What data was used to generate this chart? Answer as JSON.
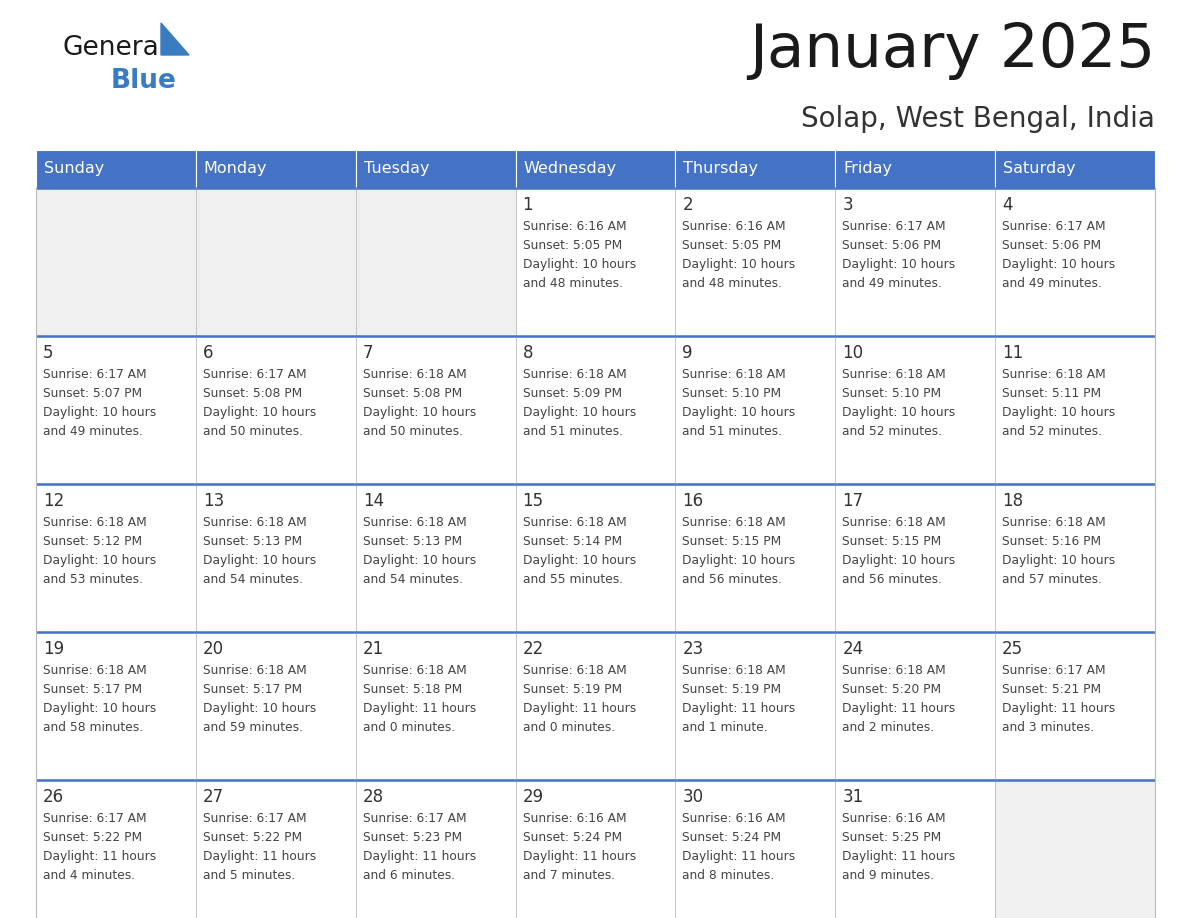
{
  "title": "January 2025",
  "subtitle": "Solap, West Bengal, India",
  "days_of_week": [
    "Sunday",
    "Monday",
    "Tuesday",
    "Wednesday",
    "Thursday",
    "Friday",
    "Saturday"
  ],
  "header_bg": "#4472C4",
  "header_text": "#FFFFFF",
  "cell_bg_light": "#FFFFFF",
  "cell_bg_gray": "#F0F0F0",
  "cell_border": "#4472C4",
  "cell_line_color": "#BBBBBB",
  "text_color": "#444444",
  "day_num_color": "#333333",
  "title_color": "#1a1a1a",
  "subtitle_color": "#333333",
  "logo_black": "#1a1a1a",
  "logo_blue": "#3a7cc1",
  "logo_tri": "#3a7cc1",
  "calendar_data": [
    [
      {
        "day": null,
        "sunrise": null,
        "sunset": null,
        "daylight_line1": null,
        "daylight_line2": null
      },
      {
        "day": null,
        "sunrise": null,
        "sunset": null,
        "daylight_line1": null,
        "daylight_line2": null
      },
      {
        "day": null,
        "sunrise": null,
        "sunset": null,
        "daylight_line1": null,
        "daylight_line2": null
      },
      {
        "day": 1,
        "sunrise": "6:16 AM",
        "sunset": "5:05 PM",
        "daylight_line1": "Daylight: 10 hours",
        "daylight_line2": "and 48 minutes."
      },
      {
        "day": 2,
        "sunrise": "6:16 AM",
        "sunset": "5:05 PM",
        "daylight_line1": "Daylight: 10 hours",
        "daylight_line2": "and 48 minutes."
      },
      {
        "day": 3,
        "sunrise": "6:17 AM",
        "sunset": "5:06 PM",
        "daylight_line1": "Daylight: 10 hours",
        "daylight_line2": "and 49 minutes."
      },
      {
        "day": 4,
        "sunrise": "6:17 AM",
        "sunset": "5:06 PM",
        "daylight_line1": "Daylight: 10 hours",
        "daylight_line2": "and 49 minutes."
      }
    ],
    [
      {
        "day": 5,
        "sunrise": "6:17 AM",
        "sunset": "5:07 PM",
        "daylight_line1": "Daylight: 10 hours",
        "daylight_line2": "and 49 minutes."
      },
      {
        "day": 6,
        "sunrise": "6:17 AM",
        "sunset": "5:08 PM",
        "daylight_line1": "Daylight: 10 hours",
        "daylight_line2": "and 50 minutes."
      },
      {
        "day": 7,
        "sunrise": "6:18 AM",
        "sunset": "5:08 PM",
        "daylight_line1": "Daylight: 10 hours",
        "daylight_line2": "and 50 minutes."
      },
      {
        "day": 8,
        "sunrise": "6:18 AM",
        "sunset": "5:09 PM",
        "daylight_line1": "Daylight: 10 hours",
        "daylight_line2": "and 51 minutes."
      },
      {
        "day": 9,
        "sunrise": "6:18 AM",
        "sunset": "5:10 PM",
        "daylight_line1": "Daylight: 10 hours",
        "daylight_line2": "and 51 minutes."
      },
      {
        "day": 10,
        "sunrise": "6:18 AM",
        "sunset": "5:10 PM",
        "daylight_line1": "Daylight: 10 hours",
        "daylight_line2": "and 52 minutes."
      },
      {
        "day": 11,
        "sunrise": "6:18 AM",
        "sunset": "5:11 PM",
        "daylight_line1": "Daylight: 10 hours",
        "daylight_line2": "and 52 minutes."
      }
    ],
    [
      {
        "day": 12,
        "sunrise": "6:18 AM",
        "sunset": "5:12 PM",
        "daylight_line1": "Daylight: 10 hours",
        "daylight_line2": "and 53 minutes."
      },
      {
        "day": 13,
        "sunrise": "6:18 AM",
        "sunset": "5:13 PM",
        "daylight_line1": "Daylight: 10 hours",
        "daylight_line2": "and 54 minutes."
      },
      {
        "day": 14,
        "sunrise": "6:18 AM",
        "sunset": "5:13 PM",
        "daylight_line1": "Daylight: 10 hours",
        "daylight_line2": "and 54 minutes."
      },
      {
        "day": 15,
        "sunrise": "6:18 AM",
        "sunset": "5:14 PM",
        "daylight_line1": "Daylight: 10 hours",
        "daylight_line2": "and 55 minutes."
      },
      {
        "day": 16,
        "sunrise": "6:18 AM",
        "sunset": "5:15 PM",
        "daylight_line1": "Daylight: 10 hours",
        "daylight_line2": "and 56 minutes."
      },
      {
        "day": 17,
        "sunrise": "6:18 AM",
        "sunset": "5:15 PM",
        "daylight_line1": "Daylight: 10 hours",
        "daylight_line2": "and 56 minutes."
      },
      {
        "day": 18,
        "sunrise": "6:18 AM",
        "sunset": "5:16 PM",
        "daylight_line1": "Daylight: 10 hours",
        "daylight_line2": "and 57 minutes."
      }
    ],
    [
      {
        "day": 19,
        "sunrise": "6:18 AM",
        "sunset": "5:17 PM",
        "daylight_line1": "Daylight: 10 hours",
        "daylight_line2": "and 58 minutes."
      },
      {
        "day": 20,
        "sunrise": "6:18 AM",
        "sunset": "5:17 PM",
        "daylight_line1": "Daylight: 10 hours",
        "daylight_line2": "and 59 minutes."
      },
      {
        "day": 21,
        "sunrise": "6:18 AM",
        "sunset": "5:18 PM",
        "daylight_line1": "Daylight: 11 hours",
        "daylight_line2": "and 0 minutes."
      },
      {
        "day": 22,
        "sunrise": "6:18 AM",
        "sunset": "5:19 PM",
        "daylight_line1": "Daylight: 11 hours",
        "daylight_line2": "and 0 minutes."
      },
      {
        "day": 23,
        "sunrise": "6:18 AM",
        "sunset": "5:19 PM",
        "daylight_line1": "Daylight: 11 hours",
        "daylight_line2": "and 1 minute."
      },
      {
        "day": 24,
        "sunrise": "6:18 AM",
        "sunset": "5:20 PM",
        "daylight_line1": "Daylight: 11 hours",
        "daylight_line2": "and 2 minutes."
      },
      {
        "day": 25,
        "sunrise": "6:17 AM",
        "sunset": "5:21 PM",
        "daylight_line1": "Daylight: 11 hours",
        "daylight_line2": "and 3 minutes."
      }
    ],
    [
      {
        "day": 26,
        "sunrise": "6:17 AM",
        "sunset": "5:22 PM",
        "daylight_line1": "Daylight: 11 hours",
        "daylight_line2": "and 4 minutes."
      },
      {
        "day": 27,
        "sunrise": "6:17 AM",
        "sunset": "5:22 PM",
        "daylight_line1": "Daylight: 11 hours",
        "daylight_line2": "and 5 minutes."
      },
      {
        "day": 28,
        "sunrise": "6:17 AM",
        "sunset": "5:23 PM",
        "daylight_line1": "Daylight: 11 hours",
        "daylight_line2": "and 6 minutes."
      },
      {
        "day": 29,
        "sunrise": "6:16 AM",
        "sunset": "5:24 PM",
        "daylight_line1": "Daylight: 11 hours",
        "daylight_line2": "and 7 minutes."
      },
      {
        "day": 30,
        "sunrise": "6:16 AM",
        "sunset": "5:24 PM",
        "daylight_line1": "Daylight: 11 hours",
        "daylight_line2": "and 8 minutes."
      },
      {
        "day": 31,
        "sunrise": "6:16 AM",
        "sunset": "5:25 PM",
        "daylight_line1": "Daylight: 11 hours",
        "daylight_line2": "and 9 minutes."
      },
      {
        "day": null,
        "sunrise": null,
        "sunset": null,
        "daylight_line1": null,
        "daylight_line2": null
      }
    ]
  ]
}
